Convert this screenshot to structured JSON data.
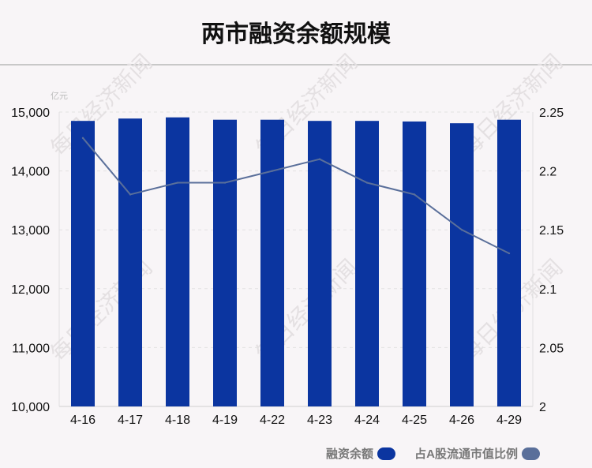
{
  "title": "两市融资余额规模",
  "watermark": "每日经济新闻",
  "chart_data": {
    "type": "bar",
    "categories": [
      "4-16",
      "4-17",
      "4-18",
      "4-19",
      "4-22",
      "4-23",
      "4-24",
      "4-25",
      "4-26",
      "4-29"
    ],
    "series": [
      {
        "name": "融资余额",
        "type": "bar",
        "axis": "left",
        "values": [
          14850,
          14890,
          14910,
          14870,
          14870,
          14850,
          14850,
          14840,
          14810,
          14870
        ],
        "color": "#0b35a0"
      },
      {
        "name": "占A股流通市值比例",
        "type": "line",
        "axis": "right",
        "values": [
          2.228,
          2.18,
          2.19,
          2.19,
          2.2,
          2.21,
          2.19,
          2.18,
          2.15,
          2.13
        ],
        "color": "#5a6f9a"
      }
    ],
    "left_axis": {
      "unit": "亿元",
      "ylim": [
        10000,
        15000
      ],
      "ticks": [
        "10,000",
        "11,000",
        "12,000",
        "13,000",
        "14,000",
        "15,000"
      ]
    },
    "right_axis": {
      "ylim": [
        2,
        2.25
      ],
      "ticks": [
        "2",
        "2.05",
        "2.1",
        "2.15",
        "2.2",
        "2.25"
      ]
    },
    "grid": true,
    "legend_position": "bottom-right"
  }
}
